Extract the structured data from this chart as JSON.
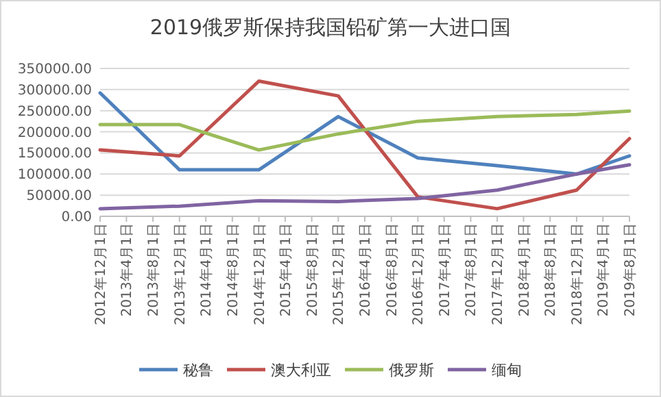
{
  "chart_data": {
    "type": "line",
    "title": "2019俄罗斯保持我国铅矿第一大进口国",
    "ylim": [
      0,
      350000
    ],
    "yticks": [
      {
        "value": 0,
        "label": "0.00"
      },
      {
        "value": 50000,
        "label": "50000.00"
      },
      {
        "value": 100000,
        "label": "100000.00"
      },
      {
        "value": 150000,
        "label": "150000.00"
      },
      {
        "value": 200000,
        "label": "200000.00"
      },
      {
        "value": 250000,
        "label": "250000.00"
      },
      {
        "value": 300000,
        "label": "300000.00"
      },
      {
        "value": 350000,
        "label": "350000.00"
      }
    ],
    "xlim": [
      "2012-12-01",
      "2019-08-01"
    ],
    "xticks": [
      {
        "value": "2012-12-01",
        "label": "2012年12月1日"
      },
      {
        "value": "2013-04-01",
        "label": "2013年4月1日"
      },
      {
        "value": "2013-08-01",
        "label": "2013年8月1日"
      },
      {
        "value": "2013-12-01",
        "label": "2013年12月1日"
      },
      {
        "value": "2014-04-01",
        "label": "2014年4月1日"
      },
      {
        "value": "2014-08-01",
        "label": "2014年8月1日"
      },
      {
        "value": "2014-12-01",
        "label": "2014年12月1日"
      },
      {
        "value": "2015-04-01",
        "label": "2015年4月1日"
      },
      {
        "value": "2015-08-01",
        "label": "2015年8月1日"
      },
      {
        "value": "2015-12-01",
        "label": "2015年12月1日"
      },
      {
        "value": "2016-04-01",
        "label": "2016年4月1日"
      },
      {
        "value": "2016-08-01",
        "label": "2016年8月1日"
      },
      {
        "value": "2016-12-01",
        "label": "2016年12月1日"
      },
      {
        "value": "2017-04-01",
        "label": "2017年4月1日"
      },
      {
        "value": "2017-08-01",
        "label": "2017年8月1日"
      },
      {
        "value": "2017-12-01",
        "label": "2017年12月1日"
      },
      {
        "value": "2018-04-01",
        "label": "2018年4月1日"
      },
      {
        "value": "2018-08-01",
        "label": "2018年8月1日"
      },
      {
        "value": "2018-12-01",
        "label": "2018年12月1日"
      },
      {
        "value": "2019-04-01",
        "label": "2019年4月1日"
      },
      {
        "value": "2019-08-01",
        "label": "2019年8月1日"
      }
    ],
    "x": [
      "2012-12-01",
      "2013-12-01",
      "2014-12-01",
      "2015-12-01",
      "2016-12-01",
      "2017-12-01",
      "2018-12-01",
      "2019-08-01"
    ],
    "grid": "y",
    "legend": "bottom",
    "series": [
      {
        "name": "秘鲁",
        "color": "#4f81bd",
        "values": [
          292000,
          110000,
          110000,
          236000,
          138000,
          120000,
          100000,
          143000
        ]
      },
      {
        "name": "澳大利亚",
        "color": "#c0504d",
        "values": [
          157000,
          143000,
          320000,
          285000,
          46000,
          18000,
          62000,
          184000
        ]
      },
      {
        "name": "俄罗斯",
        "color": "#9bbb59",
        "values": [
          217000,
          217000,
          157000,
          195000,
          225000,
          236000,
          241000,
          249000
        ]
      },
      {
        "name": "缅甸",
        "color": "#8064a2",
        "values": [
          18000,
          24000,
          37000,
          35000,
          42000,
          62000,
          100000,
          122000
        ]
      }
    ]
  }
}
